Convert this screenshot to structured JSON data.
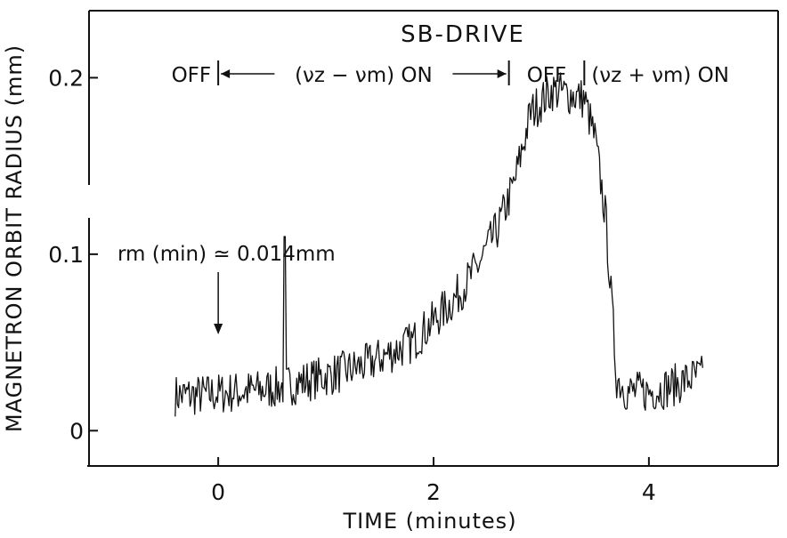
{
  "chart_data": {
    "type": "line",
    "title": "SB-DRIVE",
    "xlabel": "TIME (minutes)",
    "ylabel": "MAGNETRON ORBIT RADIUS (mm)",
    "xlim": [
      -1.2,
      5.2
    ],
    "ylim": [
      -0.02,
      0.238
    ],
    "x_ticks": [
      0,
      2,
      4
    ],
    "x_tick_labels": [
      "0",
      "2",
      "4"
    ],
    "y_ticks": [
      0,
      0.1,
      0.2
    ],
    "y_tick_labels": [
      "0",
      "0.1",
      "0.2"
    ],
    "grid": false,
    "legend": "none",
    "drive_phases": [
      {
        "label": "OFF",
        "x_start": -1.2,
        "x_end": 0
      },
      {
        "label": "(νz − νm) ON",
        "x_start": 0,
        "x_end": 2.7
      },
      {
        "label": "OFF",
        "x_start": 2.7,
        "x_end": 3.4
      },
      {
        "label": "(νz + νm) ON",
        "x_start": 3.4,
        "x_end": 5.2
      }
    ],
    "annotation": {
      "text": "rm (min) ≃ 0.014mm",
      "x": 0,
      "y": 0.013
    },
    "series": [
      {
        "x": [
          -0.4,
          -0.2,
          0.0,
          0.2,
          0.4,
          0.6,
          0.8,
          1.0,
          1.2,
          1.4,
          1.6,
          1.8,
          2.0,
          2.2,
          2.4,
          2.6,
          2.75,
          2.9,
          3.1,
          3.3,
          3.4,
          3.5,
          3.6,
          3.7,
          3.8,
          4.0,
          4.2,
          4.4,
          4.5
        ],
        "y": [
          0.02,
          0.02,
          0.021,
          0.022,
          0.023,
          0.025,
          0.028,
          0.031,
          0.034,
          0.038,
          0.044,
          0.05,
          0.062,
          0.075,
          0.092,
          0.115,
          0.14,
          0.18,
          0.193,
          0.19,
          0.188,
          0.165,
          0.12,
          0.03,
          0.022,
          0.022,
          0.025,
          0.03,
          0.031
        ],
        "noise_amplitude": 0.012,
        "spikes": [
          {
            "x": 0.62,
            "y": 0.11
          }
        ]
      }
    ]
  }
}
